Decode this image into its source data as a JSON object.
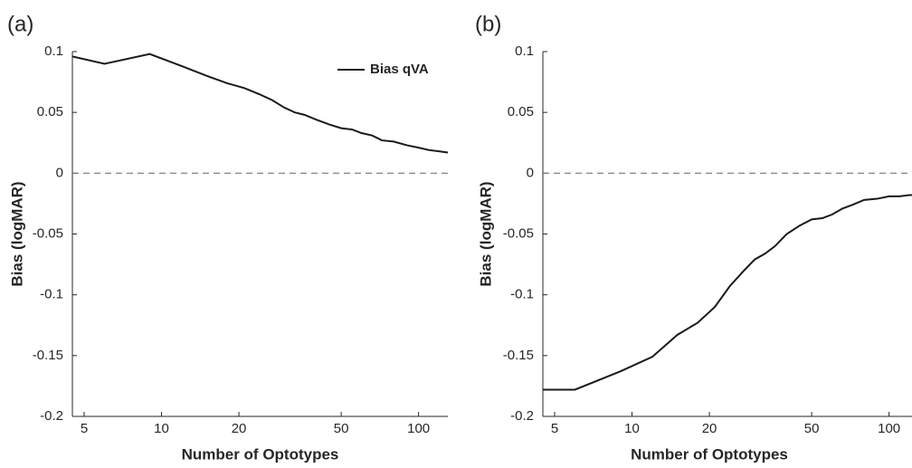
{
  "chart_data": [
    {
      "type": "line",
      "panel_label": "(a)",
      "xlabel": "Number of Optotypes",
      "ylabel": "Bias (logMAR)",
      "x": [
        4.5,
        6,
        9,
        12,
        15,
        18,
        21,
        24,
        27,
        30,
        33,
        36,
        40,
        45,
        50,
        55,
        60,
        66,
        72,
        80,
        90,
        100,
        110,
        120,
        130
      ],
      "series": [
        {
          "name": "Bias qVA",
          "color": "#1a1a1a",
          "values": [
            0.096,
            0.09,
            0.098,
            0.088,
            0.08,
            0.074,
            0.07,
            0.065,
            0.06,
            0.054,
            0.05,
            0.048,
            0.044,
            0.04,
            0.037,
            0.036,
            0.033,
            0.031,
            0.027,
            0.026,
            0.023,
            0.021,
            0.019,
            0.018,
            0.017
          ]
        }
      ],
      "xscale": "log",
      "xlim": [
        4.5,
        130
      ],
      "xticks": [
        5,
        10,
        20,
        50,
        100
      ],
      "ylim": [
        -0.2,
        0.1
      ],
      "yticks": [
        -0.2,
        -0.15,
        -0.1,
        -0.05,
        0,
        0.05,
        0.1
      ],
      "hline": 0,
      "legend": "upper right"
    },
    {
      "type": "line",
      "panel_label": "(b)",
      "xlabel": "Number of Optotypes",
      "ylabel": "Bias (logMAR)",
      "x": [
        4.5,
        6,
        9,
        12,
        15,
        18,
        21,
        24,
        27,
        30,
        33,
        36,
        40,
        45,
        50,
        55,
        60,
        66,
        72,
        80,
        90,
        100,
        110,
        120,
        130
      ],
      "series": [
        {
          "color": "#1a1a1a",
          "values": [
            -0.178,
            -0.178,
            -0.163,
            -0.151,
            -0.133,
            -0.123,
            -0.11,
            -0.093,
            -0.081,
            -0.071,
            -0.066,
            -0.06,
            -0.05,
            -0.043,
            -0.038,
            -0.037,
            -0.034,
            -0.029,
            -0.026,
            -0.022,
            -0.021,
            -0.019,
            -0.019,
            -0.018,
            -0.018
          ]
        }
      ],
      "xscale": "log",
      "xlim": [
        4.5,
        130
      ],
      "xticks": [
        5,
        10,
        20,
        50,
        100
      ],
      "ylim": [
        -0.2,
        0.1
      ],
      "yticks": [
        -0.2,
        -0.15,
        -0.1,
        -0.05,
        0,
        0.05,
        0.1
      ],
      "hline": 0
    }
  ]
}
